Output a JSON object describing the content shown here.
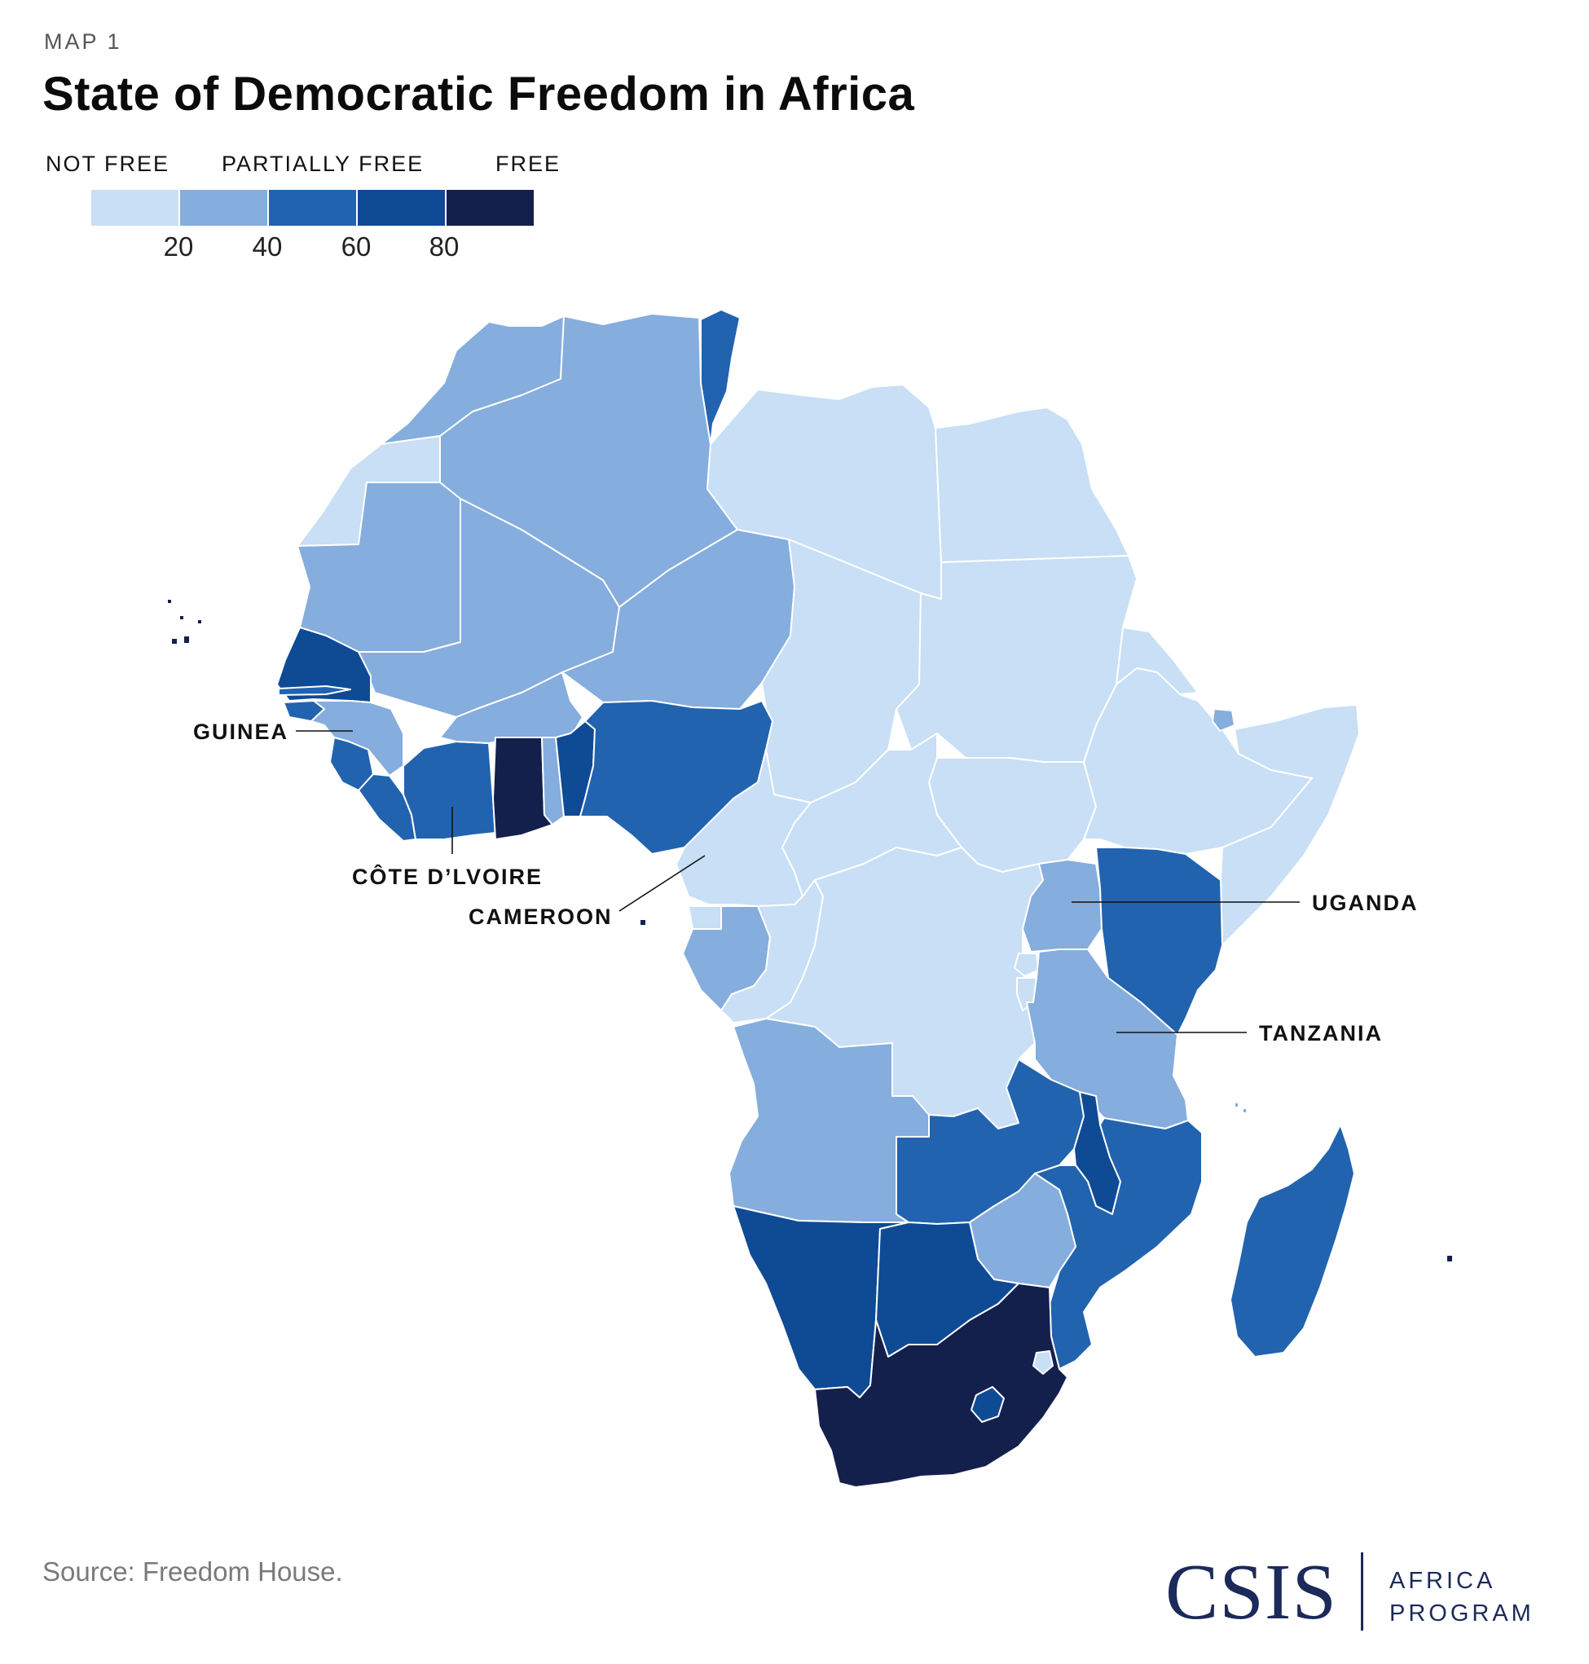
{
  "header": {
    "kicker": "MAP 1",
    "title": "State of Democratic Freedom in Africa"
  },
  "legend": {
    "categories": [
      "NOT FREE",
      "PARTIALLY FREE",
      "FREE"
    ],
    "bins": [
      {
        "range": [
          0,
          20
        ],
        "color": "#c8dff5"
      },
      {
        "range": [
          20,
          40
        ],
        "color": "#85addd"
      },
      {
        "range": [
          40,
          60
        ],
        "color": "#2163ae"
      },
      {
        "range": [
          60,
          80
        ],
        "color": "#0f4a95"
      },
      {
        "range": [
          80,
          100
        ],
        "color": "#14204c"
      }
    ],
    "ticks": [
      "20",
      "40",
      "60",
      "80"
    ]
  },
  "map": {
    "countries": [
      {
        "name": "morocco",
        "bin": 1
      },
      {
        "name": "western-sahara",
        "bin": 0
      },
      {
        "name": "algeria",
        "bin": 1
      },
      {
        "name": "tunisia",
        "bin": 2
      },
      {
        "name": "libya",
        "bin": 0
      },
      {
        "name": "egypt",
        "bin": 0
      },
      {
        "name": "mauritania",
        "bin": 1
      },
      {
        "name": "mali",
        "bin": 1
      },
      {
        "name": "niger",
        "bin": 1
      },
      {
        "name": "chad",
        "bin": 0
      },
      {
        "name": "sudan",
        "bin": 0
      },
      {
        "name": "south-sudan",
        "bin": 0
      },
      {
        "name": "eritrea",
        "bin": 0
      },
      {
        "name": "ethiopia",
        "bin": 0
      },
      {
        "name": "djibouti",
        "bin": 1
      },
      {
        "name": "somalia",
        "bin": 0
      },
      {
        "name": "senegal",
        "bin": 3
      },
      {
        "name": "gambia",
        "bin": 2
      },
      {
        "name": "guinea-bissau",
        "bin": 2
      },
      {
        "name": "guinea",
        "bin": 1
      },
      {
        "name": "sierra-leone",
        "bin": 2
      },
      {
        "name": "liberia",
        "bin": 2
      },
      {
        "name": "cote-divoire",
        "bin": 2
      },
      {
        "name": "burkina-faso",
        "bin": 1
      },
      {
        "name": "ghana",
        "bin": 4
      },
      {
        "name": "togo",
        "bin": 1
      },
      {
        "name": "benin",
        "bin": 3
      },
      {
        "name": "nigeria",
        "bin": 2
      },
      {
        "name": "cameroon",
        "bin": 0
      },
      {
        "name": "central-african-republic",
        "bin": 0
      },
      {
        "name": "equatorial-guinea",
        "bin": 0
      },
      {
        "name": "gabon",
        "bin": 1
      },
      {
        "name": "republic-of-congo",
        "bin": 0
      },
      {
        "name": "dr-congo",
        "bin": 0
      },
      {
        "name": "uganda",
        "bin": 1
      },
      {
        "name": "kenya",
        "bin": 2
      },
      {
        "name": "rwanda",
        "bin": 0
      },
      {
        "name": "burundi",
        "bin": 0
      },
      {
        "name": "tanzania",
        "bin": 1
      },
      {
        "name": "angola",
        "bin": 1
      },
      {
        "name": "zambia",
        "bin": 2
      },
      {
        "name": "malawi",
        "bin": 3
      },
      {
        "name": "mozambique",
        "bin": 2
      },
      {
        "name": "zimbabwe",
        "bin": 1
      },
      {
        "name": "namibia",
        "bin": 3
      },
      {
        "name": "botswana",
        "bin": 3
      },
      {
        "name": "south-africa",
        "bin": 4
      },
      {
        "name": "lesotho",
        "bin": 3
      },
      {
        "name": "eswatini",
        "bin": 0
      },
      {
        "name": "madagascar",
        "bin": 2
      },
      {
        "name": "cabo-verde",
        "bin": 4
      },
      {
        "name": "sao-tome-and-principe",
        "bin": 4
      },
      {
        "name": "mauritius",
        "bin": 4
      },
      {
        "name": "comoros",
        "bin": 1
      }
    ],
    "callouts": [
      "GUINEA",
      "CÔTE D’LVOIRE",
      "CAMEROON",
      "UGANDA",
      "TANZANIA"
    ]
  },
  "footer": {
    "source": "Source: Freedom House.",
    "logo_word": "CSIS",
    "program_line1": "AFRICA",
    "program_line2": "PROGRAM"
  }
}
